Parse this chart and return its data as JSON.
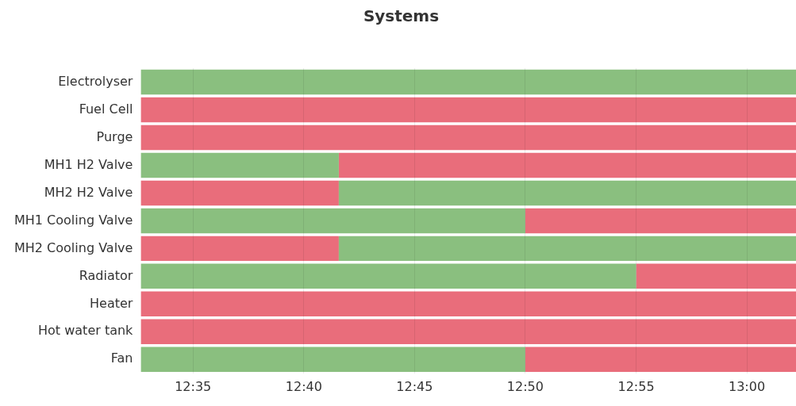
{
  "chart_data": {
    "type": "bar",
    "orientation": "horizontal",
    "title": "Systems",
    "categories": [
      "Electrolyser",
      "Fuel Cell",
      "Purge",
      "MH1 H2 Valve",
      "MH2 H2 Valve",
      "MH1 Cooling Valve",
      "MH2 Cooling Valve",
      "Radiator",
      "Heater",
      "Hot water tank",
      "Fan"
    ],
    "series": [
      {
        "color": "#8abf7f",
        "base": [
          12.544,
          null,
          null,
          12.544,
          12.693,
          12.544,
          12.693,
          12.544,
          null,
          null,
          12.544
        ],
        "values": [
          0.493,
          null,
          null,
          0.149,
          0.344,
          0.2893,
          0.344,
          0.3727,
          null,
          null,
          0.2893
        ]
      },
      {
        "color": "#e96d7b",
        "base": [
          null,
          12.544,
          12.544,
          12.693,
          12.544,
          12.8333,
          12.544,
          12.9167,
          12.544,
          12.544,
          12.8333
        ],
        "values": [
          null,
          0.493,
          0.493,
          0.344,
          0.149,
          0.2037,
          0.149,
          0.1203,
          0.493,
          0.493,
          0.2037
        ]
      }
    ],
    "xlim": [
      12.544,
      13.037
    ],
    "xticks": [
      {
        "value": 12.5833,
        "label": "12:35"
      },
      {
        "value": 12.6667,
        "label": "12:40"
      },
      {
        "value": 12.75,
        "label": "12:45"
      },
      {
        "value": 12.8333,
        "label": "12:50"
      },
      {
        "value": 12.9167,
        "label": "12:55"
      },
      {
        "value": 13.0,
        "label": "13:00"
      }
    ],
    "grid": "x"
  }
}
